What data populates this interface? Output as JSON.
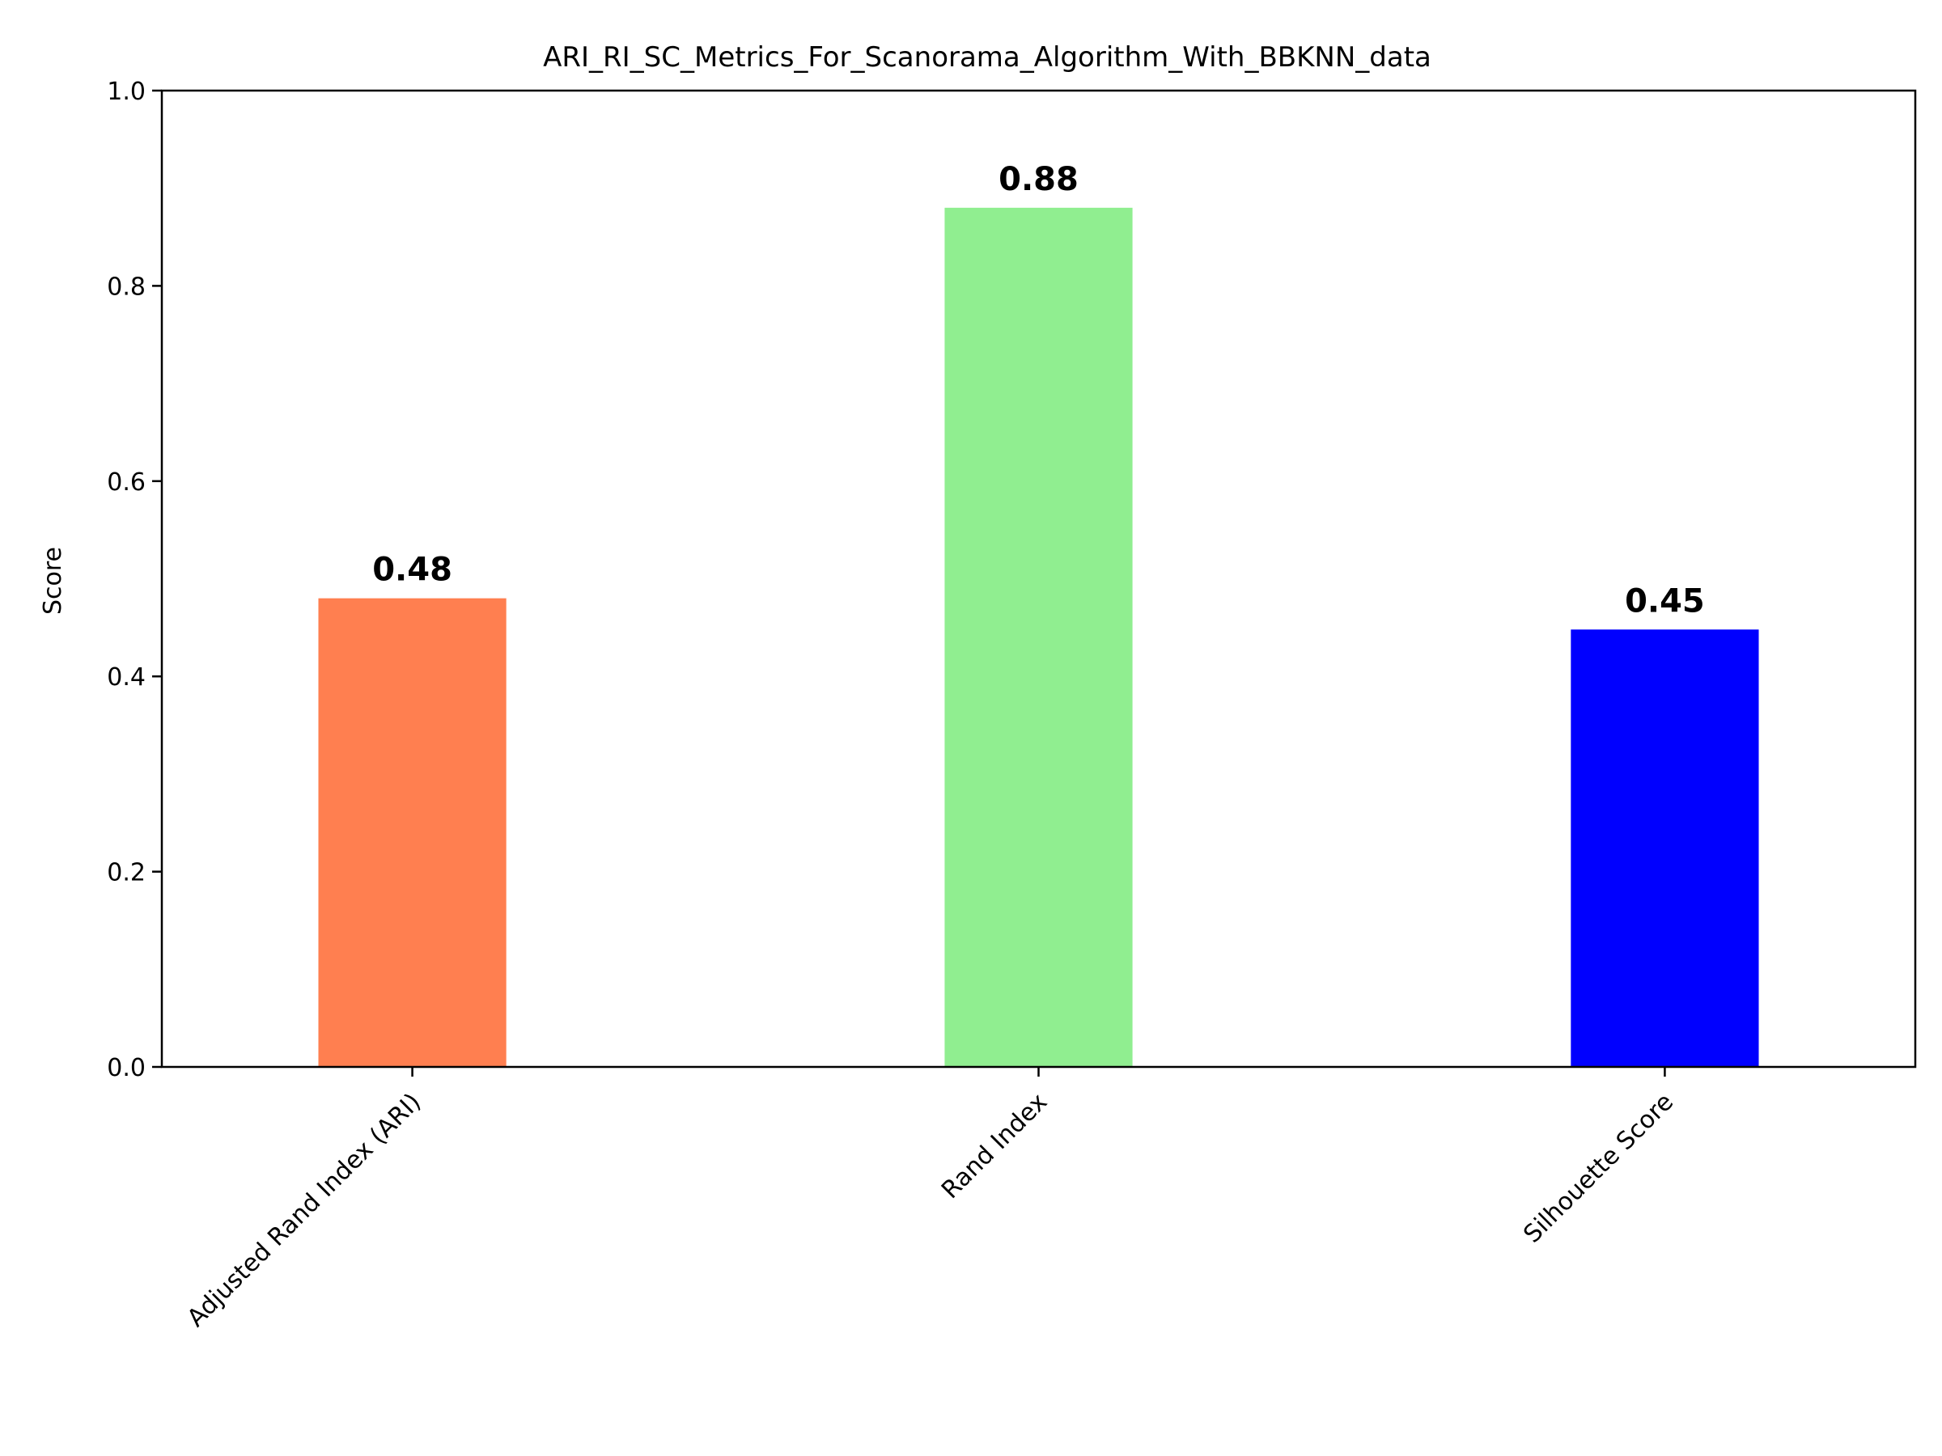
{
  "chart_data": {
    "type": "bar",
    "title": "ARI_RI_SC_Metrics_For_Scanorama_Algorithm_With_BBKNN_data",
    "xlabel": "",
    "ylabel": "Score",
    "ylim": [
      0,
      1.0
    ],
    "yticks": [
      "0.0",
      "0.2",
      "0.4",
      "0.6",
      "0.8",
      "1.0"
    ],
    "categories": [
      "Adjusted Rand Index (ARI)",
      "Rand Index",
      "Silhouette Score"
    ],
    "values": [
      0.48,
      0.88,
      0.448
    ],
    "value_labels": [
      "0.48",
      "0.88",
      "0.45"
    ],
    "colors": [
      "#ff7f50",
      "#90ee90",
      "#0000ff"
    ],
    "grid": false,
    "legend": "none"
  }
}
